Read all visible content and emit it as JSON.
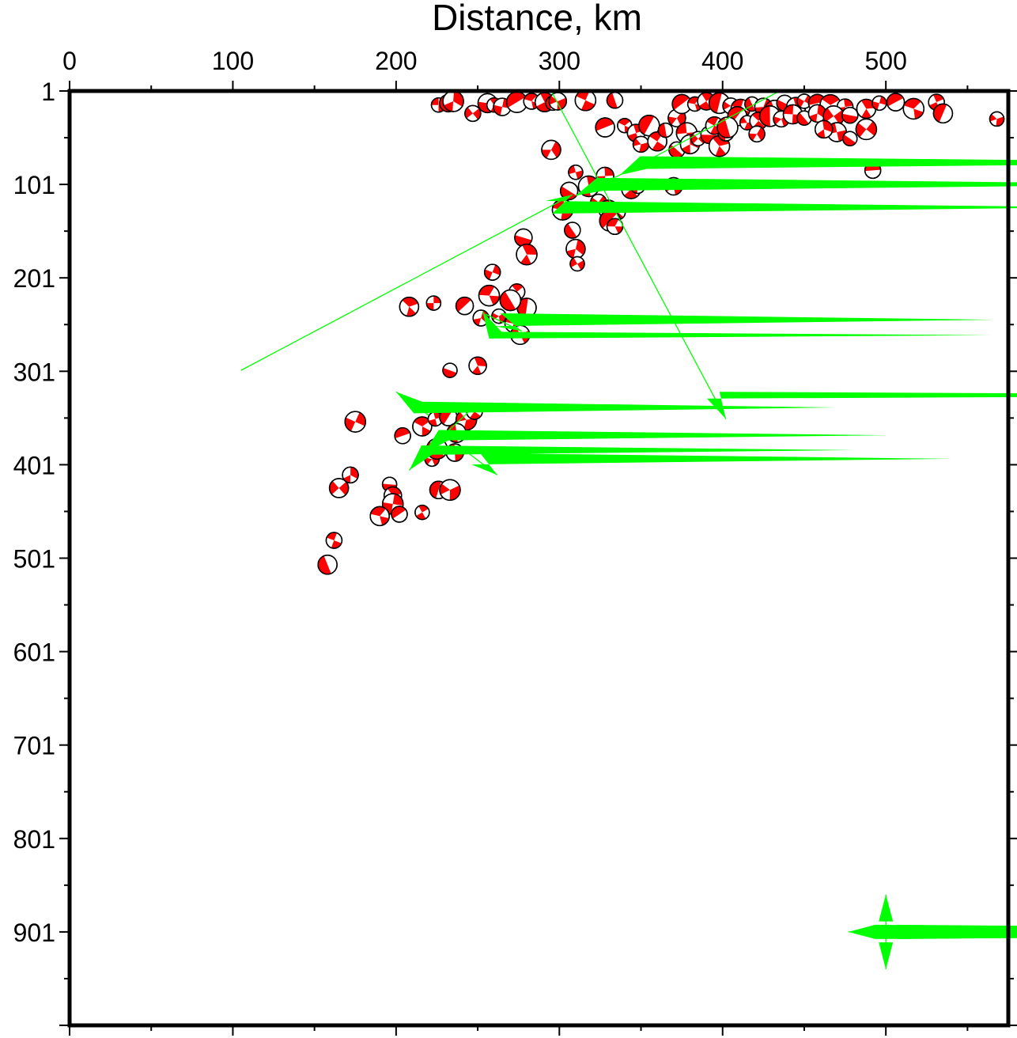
{
  "chart_data": {
    "type": "scatter",
    "title": "",
    "xlabel": "Distance, km",
    "ylabel": "",
    "xlim": [
      0,
      575
    ],
    "ylim": [
      1,
      1001
    ],
    "x_ticks": [
      "0",
      "100",
      "200",
      "300",
      "400",
      "500"
    ],
    "y_ticks": [
      "1",
      "101",
      "201",
      "301",
      "401",
      "501",
      "601",
      "701",
      "801",
      "901"
    ],
    "colors": {
      "compression": "#ff0000",
      "dilatation": "#ffffffff",
      "vectors": "#00ff00",
      "frame": "#000000"
    },
    "events": [
      [
        226,
        16
      ],
      [
        232,
        14
      ],
      [
        235,
        12
      ],
      [
        247,
        25
      ],
      [
        256,
        14
      ],
      [
        260,
        16
      ],
      [
        265,
        18
      ],
      [
        274,
        13
      ],
      [
        283,
        12
      ],
      [
        291,
        13
      ],
      [
        296,
        14
      ],
      [
        299,
        12
      ],
      [
        316,
        11
      ],
      [
        334,
        11
      ],
      [
        295,
        64
      ],
      [
        310,
        88
      ],
      [
        306,
        108
      ],
      [
        318,
        103
      ],
      [
        324,
        120
      ],
      [
        330,
        128
      ],
      [
        336,
        131
      ],
      [
        328,
        92
      ],
      [
        331,
        140
      ],
      [
        334,
        146
      ],
      [
        344,
        106
      ],
      [
        348,
        103
      ],
      [
        370,
        103
      ],
      [
        302,
        128
      ],
      [
        308,
        150
      ],
      [
        310,
        170
      ],
      [
        311,
        186
      ],
      [
        278,
        158
      ],
      [
        280,
        176
      ],
      [
        259,
        195
      ],
      [
        328,
        40
      ],
      [
        340,
        38
      ],
      [
        347,
        46
      ],
      [
        355,
        38
      ],
      [
        350,
        58
      ],
      [
        360,
        55
      ],
      [
        365,
        43
      ],
      [
        372,
        30
      ],
      [
        378,
        46
      ],
      [
        372,
        64
      ],
      [
        380,
        58
      ],
      [
        385,
        52
      ],
      [
        392,
        48
      ],
      [
        398,
        60
      ],
      [
        402,
        46
      ],
      [
        375,
        15
      ],
      [
        383,
        15
      ],
      [
        390,
        12
      ],
      [
        398,
        14
      ],
      [
        405,
        17
      ],
      [
        411,
        20
      ],
      [
        418,
        15
      ],
      [
        425,
        18
      ],
      [
        432,
        22
      ],
      [
        438,
        14
      ],
      [
        445,
        18
      ],
      [
        450,
        12
      ],
      [
        458,
        14
      ],
      [
        466,
        16
      ],
      [
        475,
        18
      ],
      [
        409,
        28
      ],
      [
        415,
        35
      ],
      [
        422,
        33
      ],
      [
        429,
        28
      ],
      [
        436,
        31
      ],
      [
        443,
        26
      ],
      [
        450,
        30
      ],
      [
        458,
        25
      ],
      [
        468,
        28
      ],
      [
        478,
        27
      ],
      [
        488,
        20
      ],
      [
        496,
        14
      ],
      [
        506,
        13
      ],
      [
        517,
        20
      ],
      [
        531,
        13
      ],
      [
        535,
        25
      ],
      [
        568,
        31
      ],
      [
        395,
        38
      ],
      [
        403,
        40
      ],
      [
        421,
        47
      ],
      [
        470,
        45
      ],
      [
        478,
        52
      ],
      [
        462,
        42
      ],
      [
        488,
        42
      ],
      [
        492,
        86
      ],
      [
        208,
        232
      ],
      [
        223,
        228
      ],
      [
        242,
        231
      ],
      [
        257,
        220
      ],
      [
        274,
        216
      ],
      [
        280,
        233
      ],
      [
        263,
        242
      ],
      [
        272,
        250
      ],
      [
        270,
        225
      ],
      [
        252,
        244
      ],
      [
        276,
        262
      ],
      [
        233,
        300
      ],
      [
        250,
        295
      ],
      [
        175,
        355
      ],
      [
        204,
        370
      ],
      [
        216,
        360
      ],
      [
        224,
        352
      ],
      [
        232,
        350
      ],
      [
        243,
        353
      ],
      [
        248,
        344
      ],
      [
        237,
        367
      ],
      [
        222,
        395
      ],
      [
        236,
        388
      ],
      [
        225,
        384
      ],
      [
        172,
        412
      ],
      [
        165,
        426
      ],
      [
        196,
        422
      ],
      [
        198,
        434
      ],
      [
        198,
        443
      ],
      [
        202,
        454
      ],
      [
        190,
        456
      ],
      [
        216,
        452
      ],
      [
        226,
        428
      ],
      [
        233,
        428
      ],
      [
        162,
        482
      ],
      [
        158,
        508
      ]
    ],
    "vectors": [
      {
        "from": [
          295,
          1
        ],
        "to": [
          402,
          352
        ]
      },
      {
        "from": [
          435,
          1
        ],
        "to": [
          337,
          91
        ]
      },
      {
        "from": [
          337,
          91
        ],
        "to": [
          310,
          113
        ]
      },
      {
        "from": [
          105,
          300
        ],
        "to": [
          308,
          112
        ]
      },
      {
        "from": [
          255,
          240
        ],
        "to": [
          277,
          258
        ]
      },
      {
        "from": [
          257,
          250
        ],
        "to": [
          253,
          237
        ]
      },
      {
        "from": [
          249,
          337
        ],
        "to": [
          217,
          389
        ]
      },
      {
        "from": [
          217,
          389
        ],
        "to": [
          208,
          407
        ]
      },
      {
        "from": [
          220,
          348
        ],
        "to": [
          200,
          323
        ]
      },
      {
        "from": [
          240,
          383
        ],
        "to": [
          262,
          412
        ]
      }
    ],
    "legend_vectors": {
      "center": [
        500,
        901
      ],
      "length_x": 23,
      "length_y": 40
    }
  }
}
